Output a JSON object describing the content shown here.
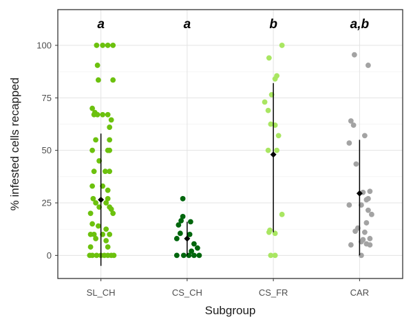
{
  "chart_data": {
    "type": "scatter",
    "xlabel": "Subgroup",
    "ylabel": "% infested cells recapped",
    "categories": [
      "SL_CH",
      "CS_CH",
      "CS_FR",
      "CAR"
    ],
    "ylim": [
      -11,
      117
    ],
    "yticks": [
      0,
      25,
      50,
      75,
      100
    ],
    "grid": true,
    "legend": "none",
    "significance_letters": [
      "a",
      "a",
      "b",
      "a,b"
    ],
    "series": [
      {
        "category": "SL_CH",
        "color": "#6cc10e",
        "mean": 26.5,
        "ci": [
          -5,
          58
        ],
        "points": [
          {
            "x": -0.05,
            "y": 100
          },
          {
            "x": 0.02,
            "y": 100
          },
          {
            "x": 0.08,
            "y": 100
          },
          {
            "x": 0.14,
            "y": 100
          },
          {
            "x": -0.04,
            "y": 90.5
          },
          {
            "x": -0.03,
            "y": 83.5
          },
          {
            "x": 0.14,
            "y": 83.5
          },
          {
            "x": -0.1,
            "y": 70
          },
          {
            "x": -0.07,
            "y": 68
          },
          {
            "x": 0.12,
            "y": 64.5
          },
          {
            "x": 0.1,
            "y": 61
          },
          {
            "x": -0.08,
            "y": 67
          },
          {
            "x": -0.04,
            "y": 67
          },
          {
            "x": 0.02,
            "y": 67
          },
          {
            "x": 0.08,
            "y": 67
          },
          {
            "x": -0.06,
            "y": 55
          },
          {
            "x": 0.1,
            "y": 55
          },
          {
            "x": -0.1,
            "y": 50
          },
          {
            "x": 0.08,
            "y": 50
          },
          {
            "x": 0.1,
            "y": 50
          },
          {
            "x": -0.02,
            "y": 45
          },
          {
            "x": -0.08,
            "y": 40
          },
          {
            "x": 0.05,
            "y": 40
          },
          {
            "x": 0.1,
            "y": 40
          },
          {
            "x": -0.1,
            "y": 33
          },
          {
            "x": 0.02,
            "y": 33
          },
          {
            "x": 0.08,
            "y": 31
          },
          {
            "x": -0.09,
            "y": 27
          },
          {
            "x": 0.08,
            "y": 27
          },
          {
            "x": -0.06,
            "y": 25
          },
          {
            "x": 0.06,
            "y": 25
          },
          {
            "x": -0.02,
            "y": 23
          },
          {
            "x": 0.1,
            "y": 23
          },
          {
            "x": 0.12,
            "y": 22
          },
          {
            "x": -0.12,
            "y": 20
          },
          {
            "x": 0.14,
            "y": 20
          },
          {
            "x": -0.1,
            "y": 15
          },
          {
            "x": -0.03,
            "y": 14
          },
          {
            "x": 0.06,
            "y": 12.5
          },
          {
            "x": -0.12,
            "y": 10
          },
          {
            "x": -0.08,
            "y": 10
          },
          {
            "x": 0.02,
            "y": 10
          },
          {
            "x": 0.1,
            "y": 10
          },
          {
            "x": -0.06,
            "y": 8
          },
          {
            "x": 0.06,
            "y": 7
          },
          {
            "x": -0.12,
            "y": 4
          },
          {
            "x": 0.08,
            "y": 4
          },
          {
            "x": -0.13,
            "y": 0
          },
          {
            "x": -0.1,
            "y": 0
          },
          {
            "x": -0.05,
            "y": 0
          },
          {
            "x": 0,
            "y": 0
          },
          {
            "x": 0.04,
            "y": 0
          },
          {
            "x": 0.08,
            "y": 0
          },
          {
            "x": 0.12,
            "y": 0
          },
          {
            "x": 0.15,
            "y": 0
          }
        ]
      },
      {
        "category": "CS_CH",
        "color": "#00660d",
        "mean": 8,
        "ci": [
          0,
          16
        ],
        "points": [
          {
            "x": -0.05,
            "y": 27
          },
          {
            "x": -0.05,
            "y": 18.5
          },
          {
            "x": -0.07,
            "y": 16.5
          },
          {
            "x": 0.04,
            "y": 16
          },
          {
            "x": -0.1,
            "y": 14.5
          },
          {
            "x": -0.08,
            "y": 10.5
          },
          {
            "x": 0.03,
            "y": 10
          },
          {
            "x": -0.12,
            "y": 8
          },
          {
            "x": 0.08,
            "y": 5.5
          },
          {
            "x": 0.12,
            "y": 3.5
          },
          {
            "x": 0.05,
            "y": 2
          },
          {
            "x": -0.12,
            "y": 0
          },
          {
            "x": -0.04,
            "y": 0
          },
          {
            "x": 0.02,
            "y": 0
          },
          {
            "x": 0.08,
            "y": 0
          },
          {
            "x": 0.14,
            "y": 0
          }
        ]
      },
      {
        "category": "CS_FR",
        "color": "#a9e662",
        "mean": 48,
        "ci": [
          11,
          82
        ],
        "points": [
          {
            "x": 0.1,
            "y": 100
          },
          {
            "x": -0.05,
            "y": 94
          },
          {
            "x": 0.04,
            "y": 85.5
          },
          {
            "x": 0.02,
            "y": 84
          },
          {
            "x": -0.02,
            "y": 76.5
          },
          {
            "x": -0.1,
            "y": 73
          },
          {
            "x": -0.06,
            "y": 69
          },
          {
            "x": -0.03,
            "y": 62.5
          },
          {
            "x": 0.02,
            "y": 62
          },
          {
            "x": 0.06,
            "y": 57
          },
          {
            "x": -0.06,
            "y": 50
          },
          {
            "x": 0.04,
            "y": 50
          },
          {
            "x": 0.1,
            "y": 19.5
          },
          {
            "x": -0.04,
            "y": 12
          },
          {
            "x": -0.05,
            "y": 11
          },
          {
            "x": 0.02,
            "y": 10.5
          },
          {
            "x": -0.03,
            "y": 0
          },
          {
            "x": 0.02,
            "y": 0
          }
        ]
      },
      {
        "category": "CAR",
        "color": "#a3a3a3",
        "mean": 29.5,
        "ci": [
          0,
          55
        ],
        "points": [
          {
            "x": -0.06,
            "y": 95.5
          },
          {
            "x": 0.1,
            "y": 90.5
          },
          {
            "x": -0.1,
            "y": 64
          },
          {
            "x": -0.07,
            "y": 62
          },
          {
            "x": 0.06,
            "y": 57
          },
          {
            "x": -0.12,
            "y": 53.5
          },
          {
            "x": -0.04,
            "y": 43.5
          },
          {
            "x": 0.12,
            "y": 30.5
          },
          {
            "x": 0.04,
            "y": 30
          },
          {
            "x": 0.1,
            "y": 27
          },
          {
            "x": 0.08,
            "y": 26.5
          },
          {
            "x": -0.12,
            "y": 24
          },
          {
            "x": 0.02,
            "y": 24
          },
          {
            "x": 0.1,
            "y": 21.5
          },
          {
            "x": 0.14,
            "y": 19.5
          },
          {
            "x": 0.08,
            "y": 15.5
          },
          {
            "x": -0.02,
            "y": 13
          },
          {
            "x": -0.05,
            "y": 11.5
          },
          {
            "x": 0.06,
            "y": 11
          },
          {
            "x": 0.12,
            "y": 8
          },
          {
            "x": 0.04,
            "y": 7.5
          },
          {
            "x": 0.02,
            "y": 6.5
          },
          {
            "x": 0.08,
            "y": 5.5
          },
          {
            "x": -0.1,
            "y": 5
          },
          {
            "x": 0.12,
            "y": 5
          },
          {
            "x": 0.02,
            "y": 0
          }
        ]
      }
    ]
  }
}
